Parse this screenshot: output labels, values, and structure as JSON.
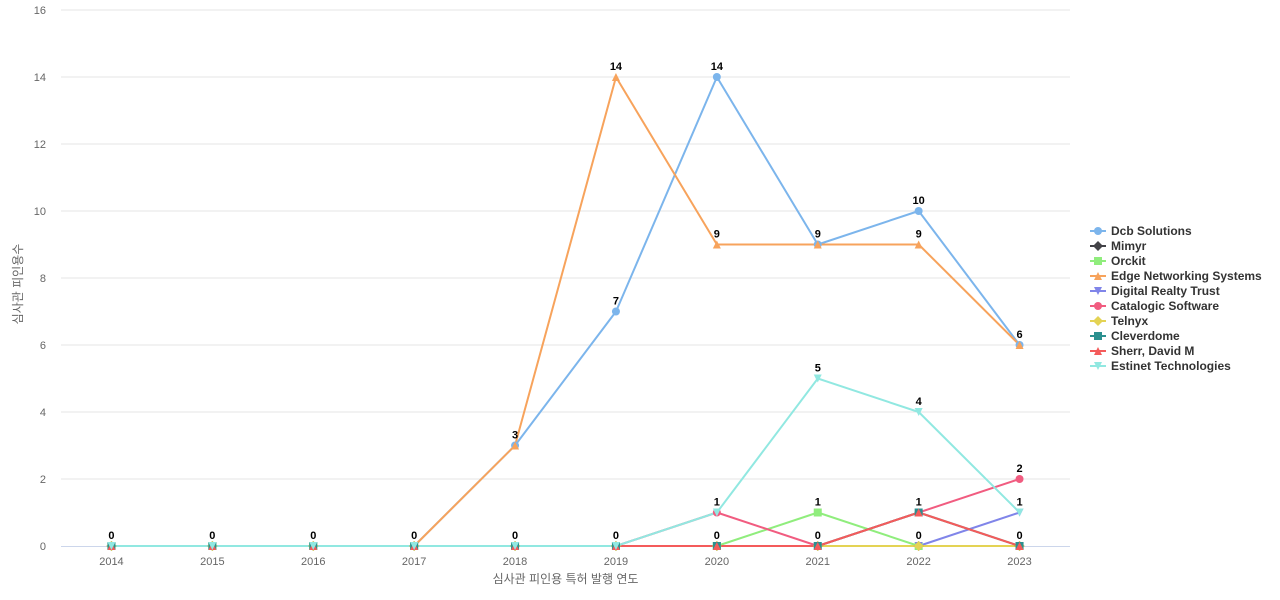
{
  "chart_data": {
    "type": "line",
    "xlabel": "심사관 피인용 특허 발행 연도",
    "ylabel": "심사관 피인용수",
    "categories": [
      "2014",
      "2015",
      "2016",
      "2017",
      "2018",
      "2019",
      "2020",
      "2021",
      "2022",
      "2023"
    ],
    "ylim": [
      0,
      16
    ],
    "yticks": [
      0,
      2,
      4,
      6,
      8,
      10,
      12,
      14,
      16
    ],
    "grid": true,
    "legend_position": "right",
    "series": [
      {
        "name": "Dcb Solutions",
        "color": "#7cb5ec",
        "marker": "circle",
        "values": [
          0,
          0,
          0,
          0,
          3,
          7,
          14,
          9,
          10,
          6
        ]
      },
      {
        "name": "Mimyr",
        "color": "#434348",
        "marker": "diamond",
        "values": [
          0,
          0,
          0,
          0,
          0,
          0,
          0,
          0,
          0,
          0
        ]
      },
      {
        "name": "Orckit",
        "color": "#90ed7d",
        "marker": "square",
        "values": [
          0,
          0,
          0,
          0,
          0,
          0,
          0,
          1,
          0,
          0
        ]
      },
      {
        "name": "Edge Networking Systems",
        "color": "#f7a35c",
        "marker": "triangle",
        "values": [
          0,
          0,
          0,
          0,
          3,
          14,
          9,
          9,
          9,
          6
        ]
      },
      {
        "name": "Digital Realty Trust",
        "color": "#8085e9",
        "marker": "triangle-down",
        "values": [
          0,
          0,
          0,
          0,
          0,
          0,
          0,
          0,
          0,
          1
        ]
      },
      {
        "name": "Catalogic Software",
        "color": "#f15c80",
        "marker": "circle",
        "values": [
          0,
          0,
          0,
          0,
          0,
          0,
          1,
          0,
          1,
          2
        ]
      },
      {
        "name": "Telnyx",
        "color": "#e4d354",
        "marker": "diamond",
        "values": [
          0,
          0,
          0,
          0,
          0,
          0,
          0,
          0,
          0,
          0
        ]
      },
      {
        "name": "Cleverdome",
        "color": "#2b908f",
        "marker": "square",
        "values": [
          0,
          0,
          0,
          0,
          0,
          0,
          0,
          0,
          1,
          0
        ]
      },
      {
        "name": "Sherr, David M",
        "color": "#f45b5b",
        "marker": "triangle",
        "values": [
          0,
          0,
          0,
          0,
          0,
          0,
          0,
          0,
          1,
          0
        ]
      },
      {
        "name": "Estinet Technologies",
        "color": "#91e8e1",
        "marker": "triangle-down",
        "values": [
          0,
          0,
          0,
          0,
          0,
          0,
          1,
          5,
          4,
          1
        ]
      }
    ],
    "data_labels": [
      {
        "x": "2014",
        "value": 0
      },
      {
        "x": "2015",
        "value": 0
      },
      {
        "x": "2016",
        "value": 0
      },
      {
        "x": "2017",
        "value": 0
      },
      {
        "x": "2018",
        "value": 0
      },
      {
        "x": "2018",
        "value": 3
      },
      {
        "x": "2019",
        "value": 0
      },
      {
        "x": "2019",
        "value": 7
      },
      {
        "x": "2019",
        "value": 14
      },
      {
        "x": "2020",
        "value": 0
      },
      {
        "x": "2020",
        "value": 1
      },
      {
        "x": "2020",
        "value": 9
      },
      {
        "x": "2020",
        "value": 14
      },
      {
        "x": "2021",
        "value": 0
      },
      {
        "x": "2021",
        "value": 1
      },
      {
        "x": "2021",
        "value": 5
      },
      {
        "x": "2021",
        "value": 9
      },
      {
        "x": "2022",
        "value": 0
      },
      {
        "x": "2022",
        "value": 1
      },
      {
        "x": "2022",
        "value": 4
      },
      {
        "x": "2022",
        "value": 9
      },
      {
        "x": "2022",
        "value": 10
      },
      {
        "x": "2023",
        "value": 0
      },
      {
        "x": "2023",
        "value": 1
      },
      {
        "x": "2023",
        "value": 2
      },
      {
        "x": "2023",
        "value": 6
      }
    ]
  }
}
